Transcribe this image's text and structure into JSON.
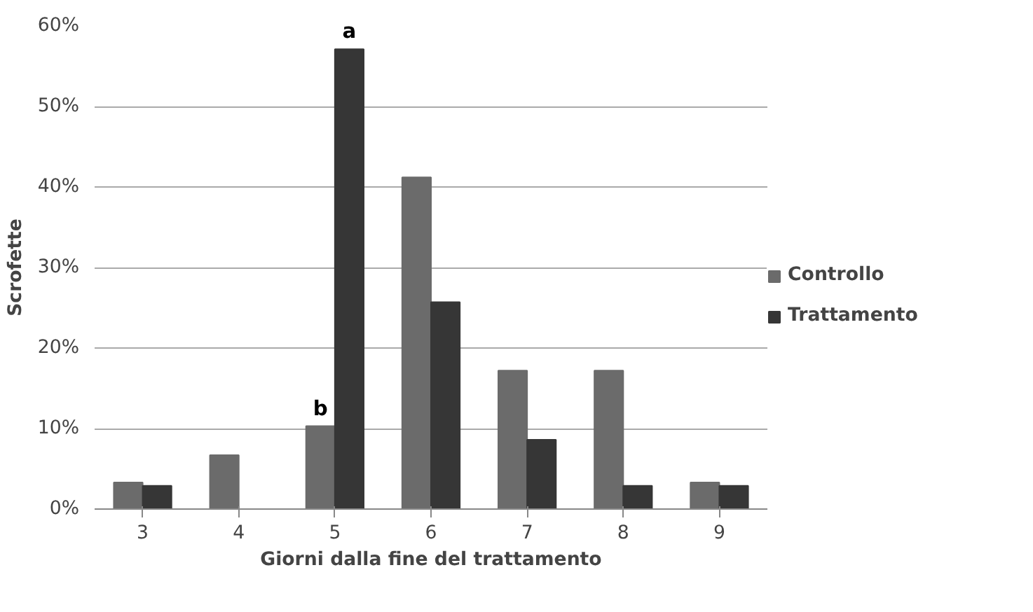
{
  "chart_data": {
    "type": "bar",
    "xlabel": "Giorni dalla fine del trattamento",
    "ylabel": "Scrofette",
    "categories": [
      "3",
      "4",
      "5",
      "6",
      "7",
      "8",
      "9"
    ],
    "series": [
      {
        "name": "Controllo",
        "color": "#6b6b6b",
        "values": [
          3.3,
          6.7,
          10.3,
          41.2,
          17.2,
          17.2,
          3.3
        ]
      },
      {
        "name": "Trattamento",
        "color": "#363636",
        "values": [
          2.9,
          0,
          57.1,
          25.7,
          8.6,
          2.9,
          2.9
        ]
      }
    ],
    "ylim": [
      0,
      60
    ],
    "yticks": [
      {
        "value": 0,
        "label": "0%"
      },
      {
        "value": 10,
        "label": "10%"
      },
      {
        "value": 20,
        "label": "20%"
      },
      {
        "value": 30,
        "label": "30%"
      },
      {
        "value": 40,
        "label": "40%"
      },
      {
        "value": 50,
        "label": "50%"
      },
      {
        "value": 60,
        "label": "60%"
      }
    ],
    "grid": "y",
    "legend": "right",
    "annotations": [
      {
        "text": "a",
        "x": "5",
        "y": 57.1
      },
      {
        "text": "b",
        "x": "5",
        "y": 10.3
      }
    ]
  }
}
